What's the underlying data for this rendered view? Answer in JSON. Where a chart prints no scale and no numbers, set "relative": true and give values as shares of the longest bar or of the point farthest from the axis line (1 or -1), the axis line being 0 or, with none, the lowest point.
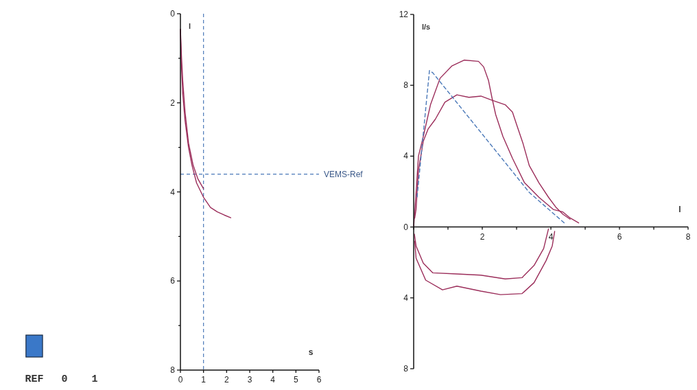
{
  "chart_data": [
    {
      "type": "bar",
      "relative": true,
      "categories": [
        "REF",
        "0",
        "1"
      ],
      "values": [
        1,
        null,
        null
      ],
      "color": "#3a78c8"
    },
    {
      "type": "line",
      "xlabel": "s",
      "ylabel": "l",
      "xlim": [
        0,
        6
      ],
      "ylim": [
        8,
        0
      ],
      "xticks": [
        0,
        1,
        2,
        3,
        4,
        5,
        6
      ],
      "yticks": [
        0,
        {
          "value": 1,
          "label": null
        },
        2,
        {
          "value": 3,
          "label": null
        },
        4,
        {
          "value": 5,
          "label": null
        },
        6,
        {
          "value": 7,
          "label": null
        },
        8
      ],
      "line_style": "solid",
      "series": [
        {
          "color": "#9b2d5a",
          "x": [
            0,
            0.03,
            0.1,
            0.2,
            0.35,
            0.5,
            0.7,
            1.0,
            1.3,
            1.6,
            1.9,
            2.18
          ],
          "values": [
            0.35,
            1.0,
            1.8,
            2.4,
            3.0,
            3.4,
            3.8,
            4.12,
            4.35,
            4.45,
            4.52,
            4.58
          ]
        },
        {
          "color": "#9b2d5a",
          "x": [
            0,
            0.05,
            0.1,
            0.2,
            0.35,
            0.55,
            0.75,
            1.0
          ],
          "values": [
            0.35,
            1.0,
            1.5,
            2.2,
            2.9,
            3.4,
            3.7,
            3.93
          ]
        }
      ],
      "ref_lines": [
        {
          "axis": "x",
          "value": 1,
          "color": "#4a78b8",
          "line_style": "dashed"
        },
        {
          "axis": "y",
          "value": 3.6,
          "label": "VEMS-Ref",
          "color": "#4a78b8",
          "line_style": "dashed"
        }
      ]
    },
    {
      "type": "line",
      "xlabel": "l",
      "ylabel": "l/s",
      "xlim": [
        0,
        8
      ],
      "ylim": [
        -8,
        12
      ],
      "xticks": [
        {
          "value": 0,
          "label": null
        },
        {
          "value": 1,
          "label": null
        },
        2,
        {
          "value": 3,
          "label": null
        },
        4,
        {
          "value": 5,
          "label": null
        },
        6,
        {
          "value": 7,
          "label": null
        },
        8
      ],
      "yticks": [
        {
          "value": -8,
          "label": "8"
        },
        {
          "value": -4,
          "label": "4"
        },
        0,
        4,
        8,
        12
      ],
      "line_style": "solid",
      "series": [
        {
          "color": "#9b2d5a",
          "x": [
            0,
            0.07,
            0.14,
            0.28,
            0.49,
            0.77,
            1.12,
            1.47,
            1.89,
            2.04,
            2.18,
            2.28,
            2.39,
            2.6,
            2.88,
            3.23,
            3.65,
            4.07,
            4.35,
            4.56,
            4.81
          ],
          "values": [
            0,
            1.95,
            4.0,
            5.1,
            6.9,
            8.4,
            9.1,
            9.42,
            9.35,
            9.04,
            8.28,
            7.32,
            6.35,
            5.12,
            3.88,
            2.5,
            1.68,
            0.99,
            0.85,
            0.51,
            0.23
          ]
        },
        {
          "color": "#9b2d5a",
          "x": [
            0.03,
            0.07,
            0.14,
            0.28,
            0.42,
            0.63,
            0.91,
            1.26,
            1.61,
            1.96,
            2.25,
            2.67,
            2.88,
            3.02,
            3.19,
            3.37,
            3.65,
            3.93,
            4.14,
            4.35,
            4.56
          ],
          "values": [
            0.5,
            1.0,
            3.2,
            4.84,
            5.53,
            6.08,
            7.04,
            7.46,
            7.32,
            7.39,
            7.18,
            6.9,
            6.49,
            5.67,
            4.7,
            3.47,
            2.5,
            1.68,
            1.13,
            0.72,
            0.44
          ]
        },
        {
          "color": "#9b2d5a",
          "x": [
            0.02,
            0.07,
            0.28,
            0.56,
            1.26,
            1.96,
            2.67,
            3.16,
            3.51,
            3.79,
            3.93
          ],
          "values": [
            -0.4,
            -1.07,
            -2.04,
            -2.59,
            -2.65,
            -2.72,
            -2.93,
            -2.86,
            -2.17,
            -1.21,
            -0.11
          ]
        },
        {
          "color": "#9b2d5a",
          "x": [
            0.03,
            0.07,
            0.35,
            0.84,
            1.26,
            1.96,
            2.53,
            3.16,
            3.51,
            3.86,
            4.04,
            4.11
          ],
          "values": [
            -0.8,
            -1.76,
            -3.0,
            -3.55,
            -3.34,
            -3.62,
            -3.82,
            -3.76,
            -3.14,
            -1.9,
            -1.07,
            -0.25
          ]
        },
        {
          "color": "#4a78b8",
          "line_style": "dashed",
          "x": [
            0.1,
            0.46,
            0.56,
            3.37,
            4.39
          ],
          "values": [
            1.7,
            8.83,
            8.7,
            1.95,
            0.23
          ]
        }
      ]
    }
  ]
}
